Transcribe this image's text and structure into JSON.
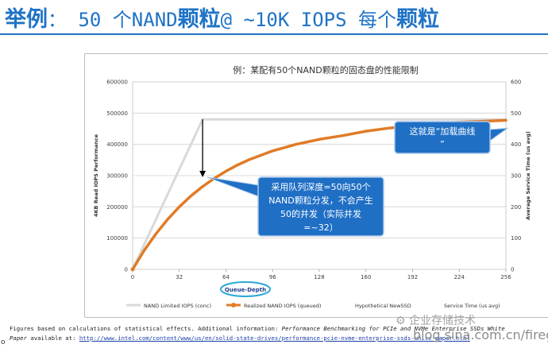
{
  "slide": {
    "title_prefix": "举例",
    "title_mid": "： 50 个",
    "title_nand": "NAND",
    "title_chip": "颗粒",
    "title_mid2": "@ ~10K IOPS 每个",
    "title_chip2": "颗粒"
  },
  "chart_data": {
    "type": "line",
    "title": "例：某配有50个NAND颗粒的固态盘的性能限制",
    "xlabel": "Queue-Depth",
    "ylabel": "4KB Read IOPS Performance",
    "y2label": "Average Service Time (us avg)",
    "xlim": [
      0,
      256
    ],
    "ylim": [
      0,
      600000
    ],
    "y2lim": [
      0,
      600
    ],
    "xticks": [
      0,
      32,
      64,
      96,
      128,
      160,
      192,
      224,
      256
    ],
    "yticks": [
      0,
      100000,
      200000,
      300000,
      400000,
      500000,
      600000
    ],
    "y2ticks": [
      0,
      100,
      200,
      300,
      400,
      500,
      600
    ],
    "grid": true,
    "legend_position": "bottom",
    "series": [
      {
        "name": "NAND Limited IOPS (conc)",
        "color": "#d9d9d9",
        "x": [
          0,
          48,
          256
        ],
        "y": [
          0,
          480000,
          480000
        ]
      },
      {
        "name": "Realized NAND IOPS (queued)",
        "color": "#e07b27",
        "x": [
          0,
          8,
          16,
          24,
          32,
          40,
          48,
          56,
          64,
          72,
          80,
          96,
          112,
          128,
          144,
          160,
          176,
          192,
          208,
          224,
          240,
          256
        ],
        "y": [
          0,
          61000,
          114000,
          160000,
          200000,
          235000,
          265000,
          291000,
          314000,
          334000,
          351000,
          379000,
          400000,
          416000,
          428000,
          442000,
          452000,
          460000,
          466000,
          471000,
          474000,
          477000
        ]
      },
      {
        "name": "Hypothetical NewSSD",
        "color": "#4f81bd",
        "x": [],
        "y": []
      },
      {
        "name": "Service Time (us avg)",
        "color": "#7f7f7f",
        "x": [],
        "y": []
      }
    ],
    "annotations": {
      "knee_callout": "采用队列深度=50向50个NAND颗粒分发，不会产生50的并发（实际并发=~32）",
      "curve_callout": "这就是“加载曲线”"
    }
  },
  "callouts": {
    "knee_lines": [
      "采用队列深度=50向50个",
      "NAND颗粒分发，不会产生",
      "50的并发（实际并发",
      "=~32）"
    ],
    "curve_lines": [
      "这就是“加载曲线",
      "”"
    ],
    "colors": {
      "fill": "#1f6fc5",
      "stroke": "#a9c7ea",
      "text": "#ffffff"
    }
  },
  "footnote": {
    "line1_a": "Figures based on calculations of statistical effects.  Additional information:  ",
    "line1_b": "Performance Benchmarking for PCIe and NVMe Enterprise SSDs White",
    "line2_a": "Paper",
    "line2_b": " available at: ",
    "line2_link": "http://www.intel.com/content/www/us/en/solid-state-drives/performance-pcie-nvme-enterprise-ssds-white-paper.html"
  },
  "watermark": {
    "badge": "企业存储技术",
    "site": "blog.sina.com.cn/firegi"
  },
  "side_mark": "o"
}
